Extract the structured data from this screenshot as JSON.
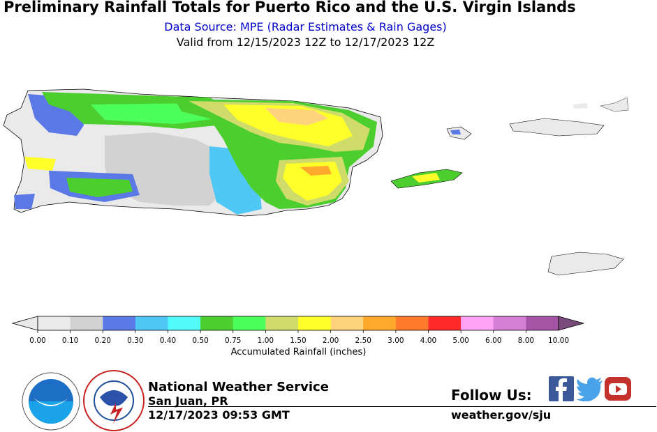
{
  "header": {
    "title": "Preliminary Rainfall Totals for Puerto Rico and the U.S. Virgin Islands",
    "subtitle": "Data Source: MPE (Radar Estimates & Rain Gages)",
    "valid": "Valid from 12/15/2023 12Z to 12/17/2023 12Z"
  },
  "legend": {
    "label": "Accumulated Rainfall (inches)",
    "bins": [
      {
        "lo": "0.00",
        "color": "#eaeaea"
      },
      {
        "lo": "0.10",
        "color": "#d2d2d2"
      },
      {
        "lo": "0.20",
        "color": "#5a78e6"
      },
      {
        "lo": "0.30",
        "color": "#4fc8f5"
      },
      {
        "lo": "0.40",
        "color": "#52fbfb"
      },
      {
        "lo": "0.50",
        "color": "#4ccf2e"
      },
      {
        "lo": "0.75",
        "color": "#4dff5a"
      },
      {
        "lo": "1.00",
        "color": "#cfdc6a"
      },
      {
        "lo": "1.50",
        "color": "#ffff2a"
      },
      {
        "lo": "2.00",
        "color": "#ffd27d"
      },
      {
        "lo": "2.50",
        "color": "#ffa82c"
      },
      {
        "lo": "3.00",
        "color": "#ff7a2c"
      },
      {
        "lo": "4.00",
        "color": "#ff2a2a"
      },
      {
        "lo": "5.00",
        "color": "#ffa2f5"
      },
      {
        "lo": "6.00",
        "color": "#d67fd6"
      },
      {
        "lo": "8.00",
        "color": "#a654a6"
      }
    ],
    "top_label": "10.00",
    "over_color": "#7a4a7a"
  },
  "footer": {
    "org": "National Weather Service",
    "location": "San Juan, PR",
    "timestamp": "12/17/2023 09:53 GMT",
    "follow": "Follow Us:",
    "website": "weather.gov/sju",
    "social_icons": [
      "facebook-icon",
      "twitter-icon",
      "youtube-icon"
    ],
    "logos": [
      "noaa-logo",
      "nws-logo"
    ]
  }
}
